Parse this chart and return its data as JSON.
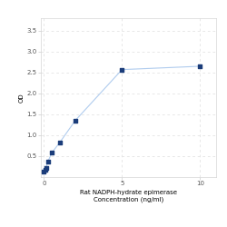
{
  "x_data": [
    0,
    0.0625,
    0.125,
    0.25,
    0.5,
    1,
    2,
    5,
    10
  ],
  "y_data": [
    0.14,
    0.17,
    0.22,
    0.37,
    0.58,
    0.82,
    1.35,
    2.57,
    2.65
  ],
  "xlabel_line1": "Rat NADPH-hydrate epimerase",
  "xlabel_line2": "Concentration (ng/ml)",
  "ylabel": "OD",
  "ylim": [
    0,
    3.8
  ],
  "xlim": [
    -0.2,
    11
  ],
  "yticks": [
    0.5,
    1.0,
    1.5,
    2.0,
    2.5,
    3.0,
    3.5
  ],
  "xticks": [
    0,
    5,
    10
  ],
  "line_color": "#b0ccee",
  "marker_color": "#1b3d7a",
  "background_color": "#ffffff",
  "grid_color": "#dddddd",
  "label_fontsize": 5,
  "tick_fontsize": 5
}
